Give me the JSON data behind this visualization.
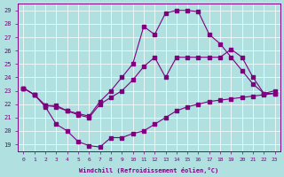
{
  "xlabel": "Windchill (Refroidissement éolien,°C)",
  "ylabel": "",
  "xlim": [
    -0.5,
    23.5
  ],
  "ylim": [
    18.5,
    29.5
  ],
  "xticks": [
    0,
    1,
    2,
    3,
    4,
    5,
    6,
    7,
    8,
    9,
    10,
    11,
    12,
    13,
    14,
    15,
    16,
    17,
    18,
    19,
    20,
    21,
    22,
    23
  ],
  "yticks": [
    19,
    20,
    21,
    22,
    23,
    24,
    25,
    26,
    27,
    28,
    29
  ],
  "bg_color": "#b0e0e0",
  "line_color": "#800080",
  "grid_color": "#ffffff",
  "s1x": [
    0,
    1,
    2,
    3,
    4,
    5,
    6,
    7,
    8,
    9,
    10,
    11,
    12,
    13,
    14,
    15,
    16,
    17,
    18,
    19,
    20,
    21,
    22,
    23
  ],
  "s1y": [
    23.2,
    22.7,
    21.8,
    20.5,
    20.0,
    19.2,
    18.9,
    18.8,
    19.5,
    19.5,
    19.8,
    20.0,
    20.5,
    21.0,
    21.5,
    21.8,
    22.0,
    22.2,
    22.3,
    22.4,
    22.5,
    22.6,
    22.7,
    22.8
  ],
  "s2x": [
    0,
    1,
    2,
    3,
    4,
    5,
    6,
    7,
    8,
    9,
    10,
    11,
    12,
    13,
    14,
    15,
    16,
    17,
    18,
    19,
    20,
    21,
    22,
    23
  ],
  "s2y": [
    23.2,
    22.7,
    21.9,
    21.8,
    21.5,
    21.2,
    21.0,
    22.0,
    22.5,
    23.0,
    23.8,
    24.8,
    25.5,
    24.0,
    25.5,
    25.5,
    25.5,
    25.5,
    25.5,
    26.1,
    25.5,
    24.0,
    22.8,
    23.0
  ],
  "s3x": [
    0,
    1,
    2,
    3,
    4,
    5,
    6,
    7,
    8,
    9,
    10,
    11,
    12,
    13,
    14,
    15,
    16,
    17,
    18,
    19,
    20,
    21,
    22,
    23
  ],
  "s3y": [
    23.2,
    22.7,
    21.9,
    21.9,
    21.5,
    21.3,
    21.1,
    22.2,
    23.0,
    24.0,
    25.0,
    27.8,
    27.2,
    28.8,
    29.0,
    29.0,
    28.9,
    27.2,
    26.5,
    25.5,
    24.5,
    23.5,
    22.8,
    22.8
  ]
}
